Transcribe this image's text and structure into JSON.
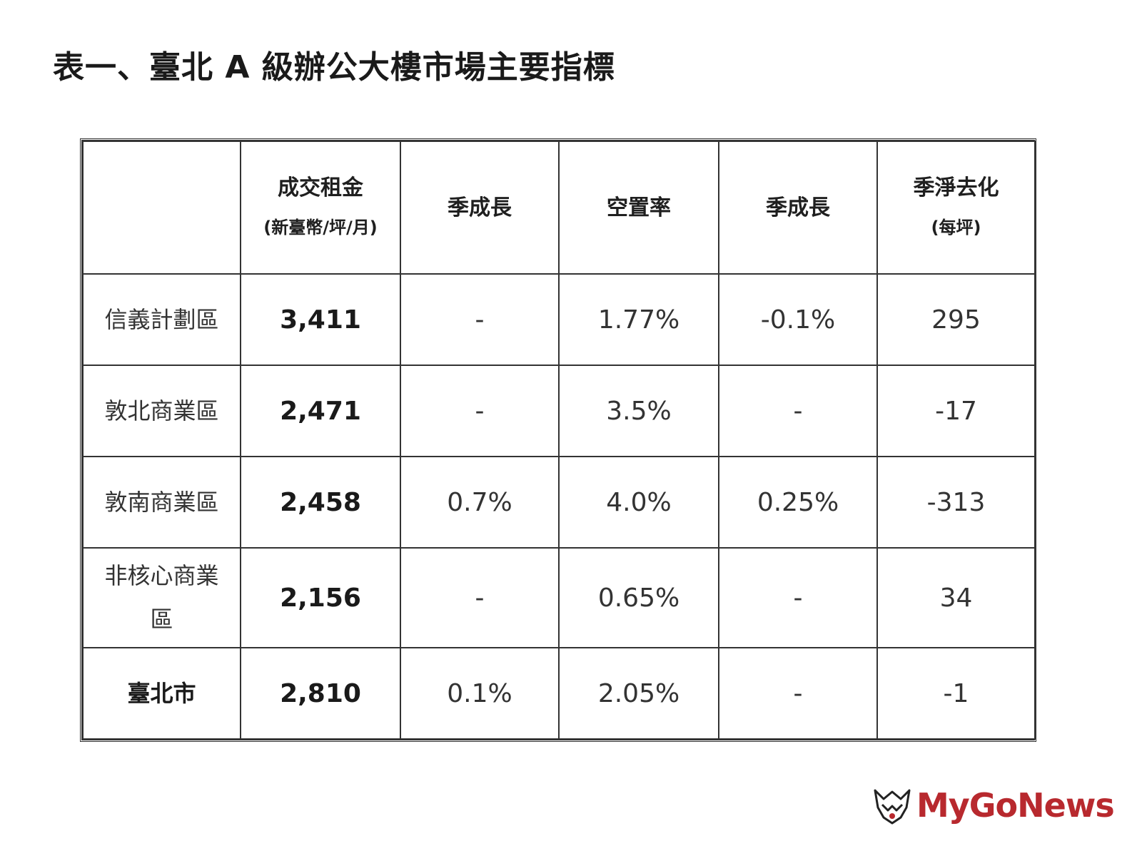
{
  "title": "表一、臺北 A 級辦公大樓市場主要指標",
  "table": {
    "headers": [
      {
        "main": "",
        "sub": ""
      },
      {
        "main": "成交租金",
        "sub": "(新臺幣/坪/月)"
      },
      {
        "main": "季成長",
        "sub": ""
      },
      {
        "main": "空置率",
        "sub": ""
      },
      {
        "main": "季成長",
        "sub": ""
      },
      {
        "main": "季淨去化",
        "sub": "(每坪)"
      }
    ],
    "rows": [
      {
        "district": "信義計劃區",
        "rent": "3,411",
        "rent_qoq": "-",
        "vacancy": "1.77%",
        "vacancy_qoq": "-0.1%",
        "absorption": "295"
      },
      {
        "district": "敦北商業區",
        "rent": "2,471",
        "rent_qoq": "-",
        "vacancy": "3.5%",
        "vacancy_qoq": "-",
        "absorption": "-17"
      },
      {
        "district": "敦南商業區",
        "rent": "2,458",
        "rent_qoq": "0.7%",
        "vacancy": "4.0%",
        "vacancy_qoq": "0.25%",
        "absorption": "-313"
      },
      {
        "district": "非核心商業區",
        "rent": "2,156",
        "rent_qoq": "-",
        "vacancy": "0.65%",
        "vacancy_qoq": "-",
        "absorption": "34"
      },
      {
        "district": "臺北市",
        "rent": "2,810",
        "rent_qoq": "0.1%",
        "vacancy": "2.05%",
        "vacancy_qoq": "-",
        "absorption": "-1"
      }
    ]
  },
  "logo": {
    "text": "MyGoNews",
    "icon": "mygonews-logo-icon",
    "color": "#b8292e"
  }
}
